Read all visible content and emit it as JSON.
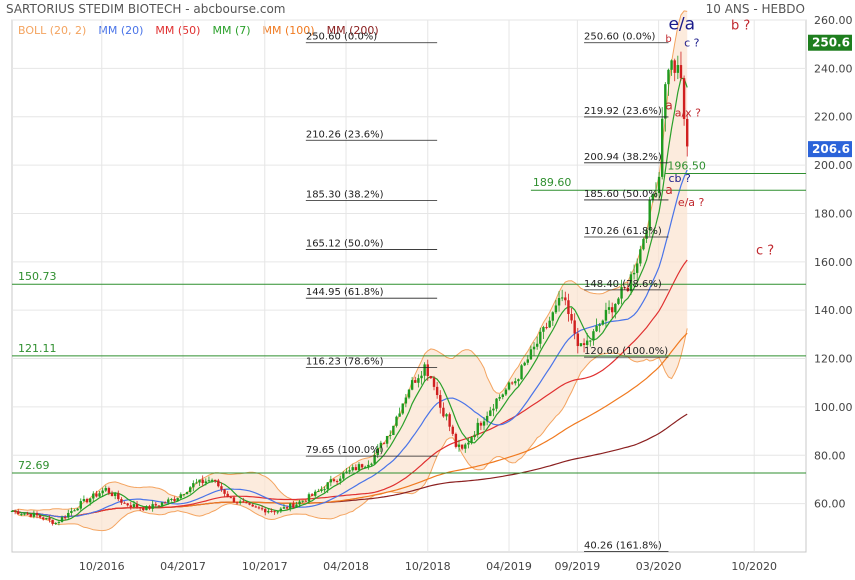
{
  "header": {
    "title": "SARTORIUS STEDIM BIOTECH - abcbourse.com",
    "period": "10 ANS - HEBDO"
  },
  "legend": [
    {
      "label": "BOLL (20, 2)",
      "color": "#f4a460"
    },
    {
      "label": "MM (20)",
      "color": "#4a74e8"
    },
    {
      "label": "MM (50)",
      "color": "#e03030"
    },
    {
      "label": "MM (7)",
      "color": "#2aa02a"
    },
    {
      "label": "MM (100)",
      "color": "#f07a20"
    },
    {
      "label": "MM (200)",
      "color": "#8b2020"
    }
  ],
  "price_tags": [
    {
      "label": "250.6",
      "value": 250.6,
      "color": "#1e7e1e"
    },
    {
      "label": "206.6",
      "value": 206.6,
      "color": "#2b63d9"
    }
  ],
  "annotations": [
    {
      "text": "e/a",
      "x": "2020-03-23",
      "y": 256,
      "color": "#1a1a8a",
      "size": 17
    },
    {
      "text": "b ?",
      "x": "2020-08-10",
      "y": 256,
      "color": "#c0282e",
      "size": 13
    },
    {
      "text": "c ?",
      "x": "2020-04-27",
      "y": 249,
      "color": "#1a1a8a",
      "size": 11
    },
    {
      "text": "b",
      "x": "2020-03-16",
      "y": 251,
      "color": "#c0282e",
      "size": 10
    },
    {
      "text": "a",
      "x": "2020-03-16",
      "y": 223,
      "color": "#c0282e",
      "size": 12
    },
    {
      "text": "a/x ?",
      "x": "2020-04-06",
      "y": 220,
      "color": "#c0282e",
      "size": 11
    },
    {
      "text": "cb ?",
      "x": "2020-03-23",
      "y": 193,
      "color": "#1a1a8a",
      "size": 11
    },
    {
      "text": "a",
      "x": "2020-03-16",
      "y": 188,
      "color": "#c0282e",
      "size": 12
    },
    {
      "text": "e/a ?",
      "x": "2020-04-13",
      "y": 183,
      "color": "#c0282e",
      "size": 11
    },
    {
      "text": "c ?",
      "x": "2020-10-05",
      "y": 163,
      "color": "#c0282e",
      "size": 13
    }
  ],
  "chart_data": {
    "type": "candlestick",
    "ylim": [
      40,
      260
    ],
    "y_ticks": [
      60,
      80,
      100,
      120,
      140,
      160,
      180,
      200,
      220,
      240,
      260
    ],
    "x_ticks": [
      "10/2016",
      "04/2017",
      "10/2017",
      "04/2018",
      "10/2018",
      "04/2019",
      "09/2019",
      "03/2020",
      "10/2020"
    ],
    "x_tick_dates": [
      "2016-10-01",
      "2017-04-01",
      "2017-10-01",
      "2018-04-01",
      "2018-10-01",
      "2019-04-01",
      "2019-09-01",
      "2020-03-01",
      "2020-10-01"
    ],
    "x_range": [
      "2016-03-14",
      "2021-01-25"
    ],
    "horizontal_lines": [
      {
        "value": 150.73,
        "label": "150.73",
        "color": "#2f8f2f",
        "full": true
      },
      {
        "value": 121.11,
        "label": "121.11",
        "color": "#2f8f2f",
        "full": true
      },
      {
        "value": 72.69,
        "label": "72.69",
        "color": "#2f8f2f",
        "full": true
      },
      {
        "value": 196.5,
        "label": "196.50",
        "color": "#2f8f2f",
        "start": "2020-03-16"
      },
      {
        "value": 189.6,
        "label": "189.60",
        "color": "#2f8f2f",
        "start": "2019-05-20"
      }
    ],
    "fibonacci": [
      {
        "range": [
          "2018-01-01",
          "2018-10-22"
        ],
        "levels": [
          {
            "value": 250.6,
            "label": "250.60  (0.0%)"
          },
          {
            "value": 210.26,
            "label": "210.26  (23.6%)"
          },
          {
            "value": 185.3,
            "label": "185.30  (38.2%)"
          },
          {
            "value": 165.12,
            "label": "165.12  (50.0%)"
          },
          {
            "value": 144.95,
            "label": "144.95  (61.8%)"
          },
          {
            "value": 116.23,
            "label": "116.23  (78.6%)"
          },
          {
            "value": 79.65,
            "label": "79.65  (100.0%)"
          }
        ]
      },
      {
        "range": [
          "2019-09-16",
          "2020-03-23"
        ],
        "levels": [
          {
            "value": 250.6,
            "label": "250.60  (0.0%)"
          },
          {
            "value": 219.92,
            "label": "219.92  (23.6%)"
          },
          {
            "value": 200.94,
            "label": "200.94  (38.2%)"
          },
          {
            "value": 185.6,
            "label": "185.60  (50.0%)"
          },
          {
            "value": 170.26,
            "label": "170.26  (61.8%)"
          },
          {
            "value": 148.4,
            "label": "148.40  (78.6%)"
          },
          {
            "value": 120.6,
            "label": "120.60  (100.0%)"
          },
          {
            "value": 40.26,
            "label": "40.26  (161.8%)"
          }
        ]
      }
    ],
    "price_anchors": [
      [
        "2016-03-14",
        57
      ],
      [
        "2016-05-09",
        55
      ],
      [
        "2016-06-20",
        52
      ],
      [
        "2016-08-15",
        60
      ],
      [
        "2016-10-10",
        66
      ],
      [
        "2016-11-21",
        60
      ],
      [
        "2017-01-09",
        58
      ],
      [
        "2017-03-13",
        62
      ],
      [
        "2017-04-24",
        68
      ],
      [
        "2017-06-05",
        70
      ],
      [
        "2017-07-17",
        62
      ],
      [
        "2017-09-04",
        58
      ],
      [
        "2017-10-30",
        57
      ],
      [
        "2017-12-11",
        60
      ],
      [
        "2018-01-22",
        64
      ],
      [
        "2018-03-05",
        70
      ],
      [
        "2018-04-16",
        74
      ],
      [
        "2018-05-28",
        78
      ],
      [
        "2018-07-09",
        90
      ],
      [
        "2018-08-20",
        108
      ],
      [
        "2018-09-24",
        117
      ],
      [
        "2018-10-15",
        110
      ],
      [
        "2018-10-29",
        100
      ],
      [
        "2018-11-12",
        96
      ],
      [
        "2018-12-03",
        84
      ],
      [
        "2018-12-17",
        82
      ],
      [
        "2019-01-21",
        92
      ],
      [
        "2019-03-04",
        103
      ],
      [
        "2019-04-15",
        111
      ],
      [
        "2019-05-27",
        124
      ],
      [
        "2019-07-08",
        138
      ],
      [
        "2019-07-29",
        145
      ],
      [
        "2019-08-19",
        134
      ],
      [
        "2019-09-09",
        124
      ],
      [
        "2019-09-30",
        128
      ],
      [
        "2019-11-11",
        140
      ],
      [
        "2019-12-23",
        150
      ],
      [
        "2020-01-20",
        165
      ],
      [
        "2020-02-17",
        188
      ],
      [
        "2020-03-02",
        196
      ],
      [
        "2020-03-09",
        222
      ],
      [
        "2020-03-23",
        242
      ],
      [
        "2020-04-06",
        240
      ],
      [
        "2020-04-20",
        235
      ],
      [
        "2020-05-04",
        205
      ]
    ]
  }
}
